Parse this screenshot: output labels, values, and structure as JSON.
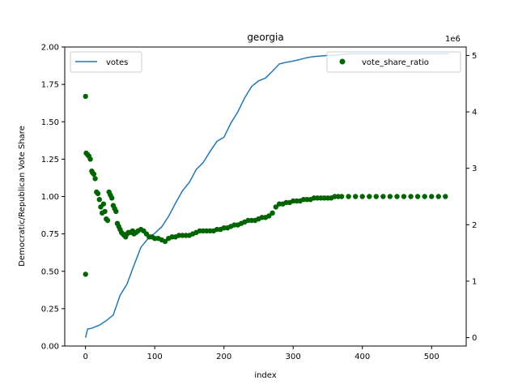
{
  "chart_data": {
    "type": "line",
    "title": "georgia",
    "xlabel": "index",
    "ylabel": "Democratic/Republican Vote Share",
    "xlim": [
      -30,
      550
    ],
    "ylim": [
      0.0,
      2.0
    ],
    "y2lim": [
      -0.15,
      5.15
    ],
    "x_ticks": [
      "0",
      "100",
      "200",
      "300",
      "400",
      "500"
    ],
    "y_ticks": [
      "0.00",
      "0.25",
      "0.50",
      "0.75",
      "1.00",
      "1.25",
      "1.50",
      "1.75",
      "2.00"
    ],
    "y2_ticks": [
      "0",
      "1",
      "2",
      "3",
      "4",
      "5"
    ],
    "y2_offset_label": "1e6",
    "grid": false,
    "series": [
      {
        "name": "votes",
        "type": "line",
        "axis": "right",
        "color": "#1f77b4",
        "legend_position": "upper left",
        "x": [
          0,
          3,
          10,
          20,
          30,
          40,
          50,
          60,
          70,
          80,
          90,
          100,
          110,
          120,
          130,
          140,
          150,
          160,
          170,
          180,
          190,
          200,
          210,
          220,
          230,
          240,
          250,
          260,
          270,
          280,
          290,
          300,
          310,
          320,
          330,
          340,
          350,
          360,
          370,
          380,
          400,
          450,
          500,
          525
        ],
        "y": [
          0.0,
          0.15,
          0.17,
          0.22,
          0.3,
          0.4,
          0.75,
          0.95,
          1.28,
          1.6,
          1.75,
          1.85,
          1.96,
          2.15,
          2.38,
          2.6,
          2.75,
          2.98,
          3.1,
          3.3,
          3.48,
          3.55,
          3.8,
          4.0,
          4.25,
          4.45,
          4.55,
          4.6,
          4.72,
          4.85,
          4.88,
          4.9,
          4.93,
          4.96,
          4.98,
          4.99,
          5.0,
          5.0,
          5.02,
          5.03,
          5.03,
          5.03,
          5.03,
          5.03
        ]
      },
      {
        "name": "vote_share_ratio",
        "type": "scatter",
        "axis": "left",
        "color": "#006400",
        "legend_position": "upper right",
        "x": [
          0,
          0,
          1,
          3,
          5,
          7,
          9,
          10,
          12,
          14,
          16,
          18,
          20,
          22,
          24,
          26,
          28,
          30,
          32,
          34,
          36,
          38,
          40,
          42,
          44,
          46,
          48,
          50,
          52,
          54,
          56,
          58,
          60,
          62,
          65,
          68,
          70,
          73,
          76,
          80,
          84,
          88,
          92,
          96,
          100,
          105,
          110,
          115,
          120,
          125,
          130,
          135,
          140,
          145,
          150,
          155,
          160,
          165,
          170,
          175,
          180,
          185,
          190,
          195,
          200,
          205,
          210,
          215,
          220,
          225,
          230,
          235,
          240,
          245,
          250,
          255,
          260,
          265,
          270,
          275,
          280,
          285,
          290,
          295,
          300,
          305,
          310,
          315,
          320,
          325,
          330,
          335,
          340,
          345,
          350,
          355,
          360,
          365,
          370,
          380,
          390,
          400,
          410,
          420,
          430,
          440,
          450,
          460,
          470,
          480,
          490,
          500,
          510,
          520
        ],
        "y": [
          1.67,
          0.48,
          1.29,
          1.28,
          1.27,
          1.25,
          1.17,
          1.16,
          1.15,
          1.12,
          1.03,
          1.02,
          0.98,
          0.93,
          0.89,
          0.95,
          0.9,
          0.85,
          0.84,
          1.03,
          1.01,
          0.99,
          0.94,
          0.92,
          0.9,
          0.82,
          0.8,
          0.78,
          0.76,
          0.75,
          0.74,
          0.73,
          0.75,
          0.76,
          0.76,
          0.77,
          0.75,
          0.76,
          0.77,
          0.78,
          0.77,
          0.75,
          0.73,
          0.73,
          0.72,
          0.72,
          0.71,
          0.7,
          0.72,
          0.73,
          0.73,
          0.74,
          0.74,
          0.74,
          0.74,
          0.75,
          0.76,
          0.77,
          0.77,
          0.77,
          0.77,
          0.77,
          0.78,
          0.78,
          0.79,
          0.79,
          0.8,
          0.81,
          0.81,
          0.82,
          0.83,
          0.84,
          0.84,
          0.84,
          0.85,
          0.86,
          0.86,
          0.87,
          0.89,
          0.93,
          0.95,
          0.95,
          0.96,
          0.96,
          0.97,
          0.97,
          0.97,
          0.98,
          0.98,
          0.98,
          0.99,
          0.99,
          0.99,
          0.99,
          0.99,
          0.99,
          1.0,
          1.0,
          1.0,
          1.0,
          1.0,
          1.0,
          1.0,
          1.0,
          1.0,
          1.0,
          1.0,
          1.0,
          1.0,
          1.0,
          1.0,
          1.0,
          1.0,
          1.0
        ]
      }
    ]
  }
}
